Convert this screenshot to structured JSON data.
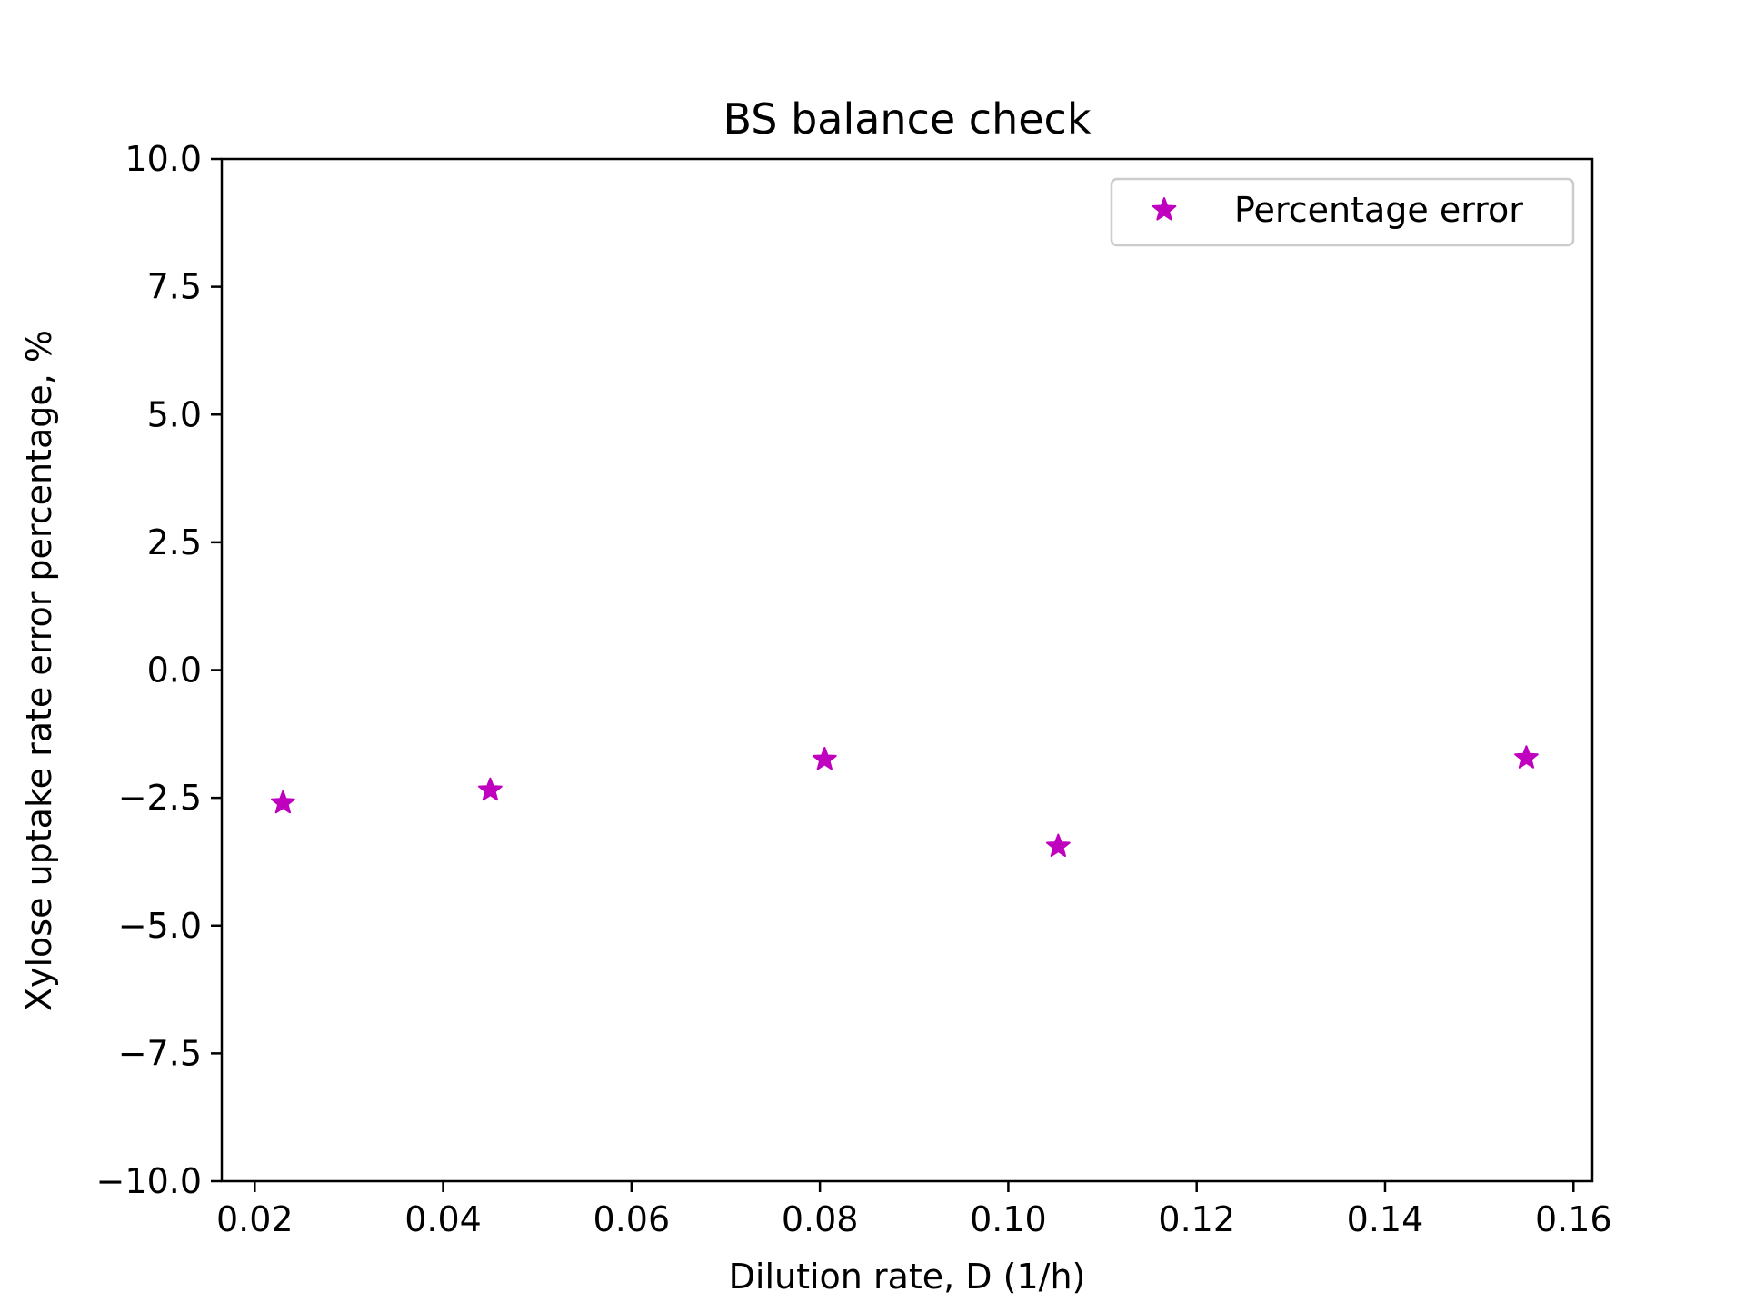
{
  "chart_data": {
    "type": "scatter",
    "title": "BS balance check",
    "xlabel": "Dilution rate, D (1/h)",
    "ylabel": "Xylose uptake rate error percentage, %",
    "xlim": [
      0.0165,
      0.162
    ],
    "ylim": [
      -10.0,
      10.0
    ],
    "x_ticks": [
      0.02,
      0.04,
      0.06,
      0.08,
      0.1,
      0.12,
      0.14,
      0.16
    ],
    "x_tick_labels": [
      "0.02",
      "0.04",
      "0.06",
      "0.08",
      "0.10",
      "0.12",
      "0.14",
      "0.16"
    ],
    "y_ticks": [
      -10.0,
      -7.5,
      -5.0,
      -2.5,
      0.0,
      2.5,
      5.0,
      7.5,
      10.0
    ],
    "y_tick_labels": [
      "−10.0",
      "−7.5",
      "−5.0",
      "−2.5",
      "0.0",
      "2.5",
      "5.0",
      "7.5",
      "10.0"
    ],
    "grid": false,
    "legend_position": "top-right",
    "series": [
      {
        "name": "Percentage error",
        "marker": "star",
        "color": "#bf00bf",
        "x": [
          0.023,
          0.045,
          0.0805,
          0.1053,
          0.155
        ],
        "y": [
          -2.6,
          -2.35,
          -1.75,
          -3.45,
          -1.72
        ]
      }
    ]
  }
}
